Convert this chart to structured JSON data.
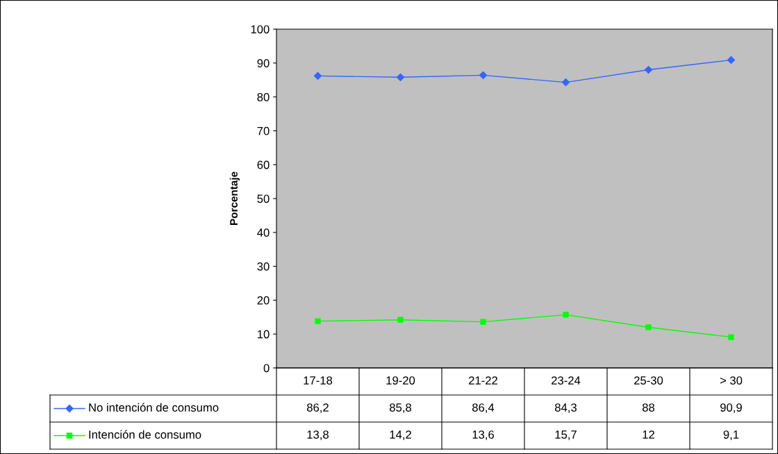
{
  "chart_data": {
    "type": "line",
    "ylabel": "Porcentaje",
    "categories": [
      "17-18",
      "19-20",
      "21-22",
      "23-24",
      "25-30",
      "> 30"
    ],
    "series": [
      {
        "name": "No intención de consumo",
        "color": "#3366ff",
        "marker": "diamond",
        "values": [
          86.2,
          85.8,
          86.4,
          84.3,
          88,
          90.9
        ],
        "value_labels": [
          "86,2",
          "85,8",
          "86,4",
          "84,3",
          "88",
          "90,9"
        ]
      },
      {
        "name": "Intención de consumo",
        "color": "#00ff00",
        "marker": "square",
        "values": [
          13.8,
          14.2,
          13.6,
          15.7,
          12,
          9.1
        ],
        "value_labels": [
          "13,8",
          "14,2",
          "13,6",
          "15,7",
          "12",
          "9,1"
        ]
      }
    ],
    "ylim": [
      0,
      100
    ],
    "yticks": [
      0,
      10,
      20,
      30,
      40,
      50,
      60,
      70,
      80,
      90,
      100
    ],
    "grid": false,
    "legend": "bottom",
    "line_style": "solid"
  }
}
